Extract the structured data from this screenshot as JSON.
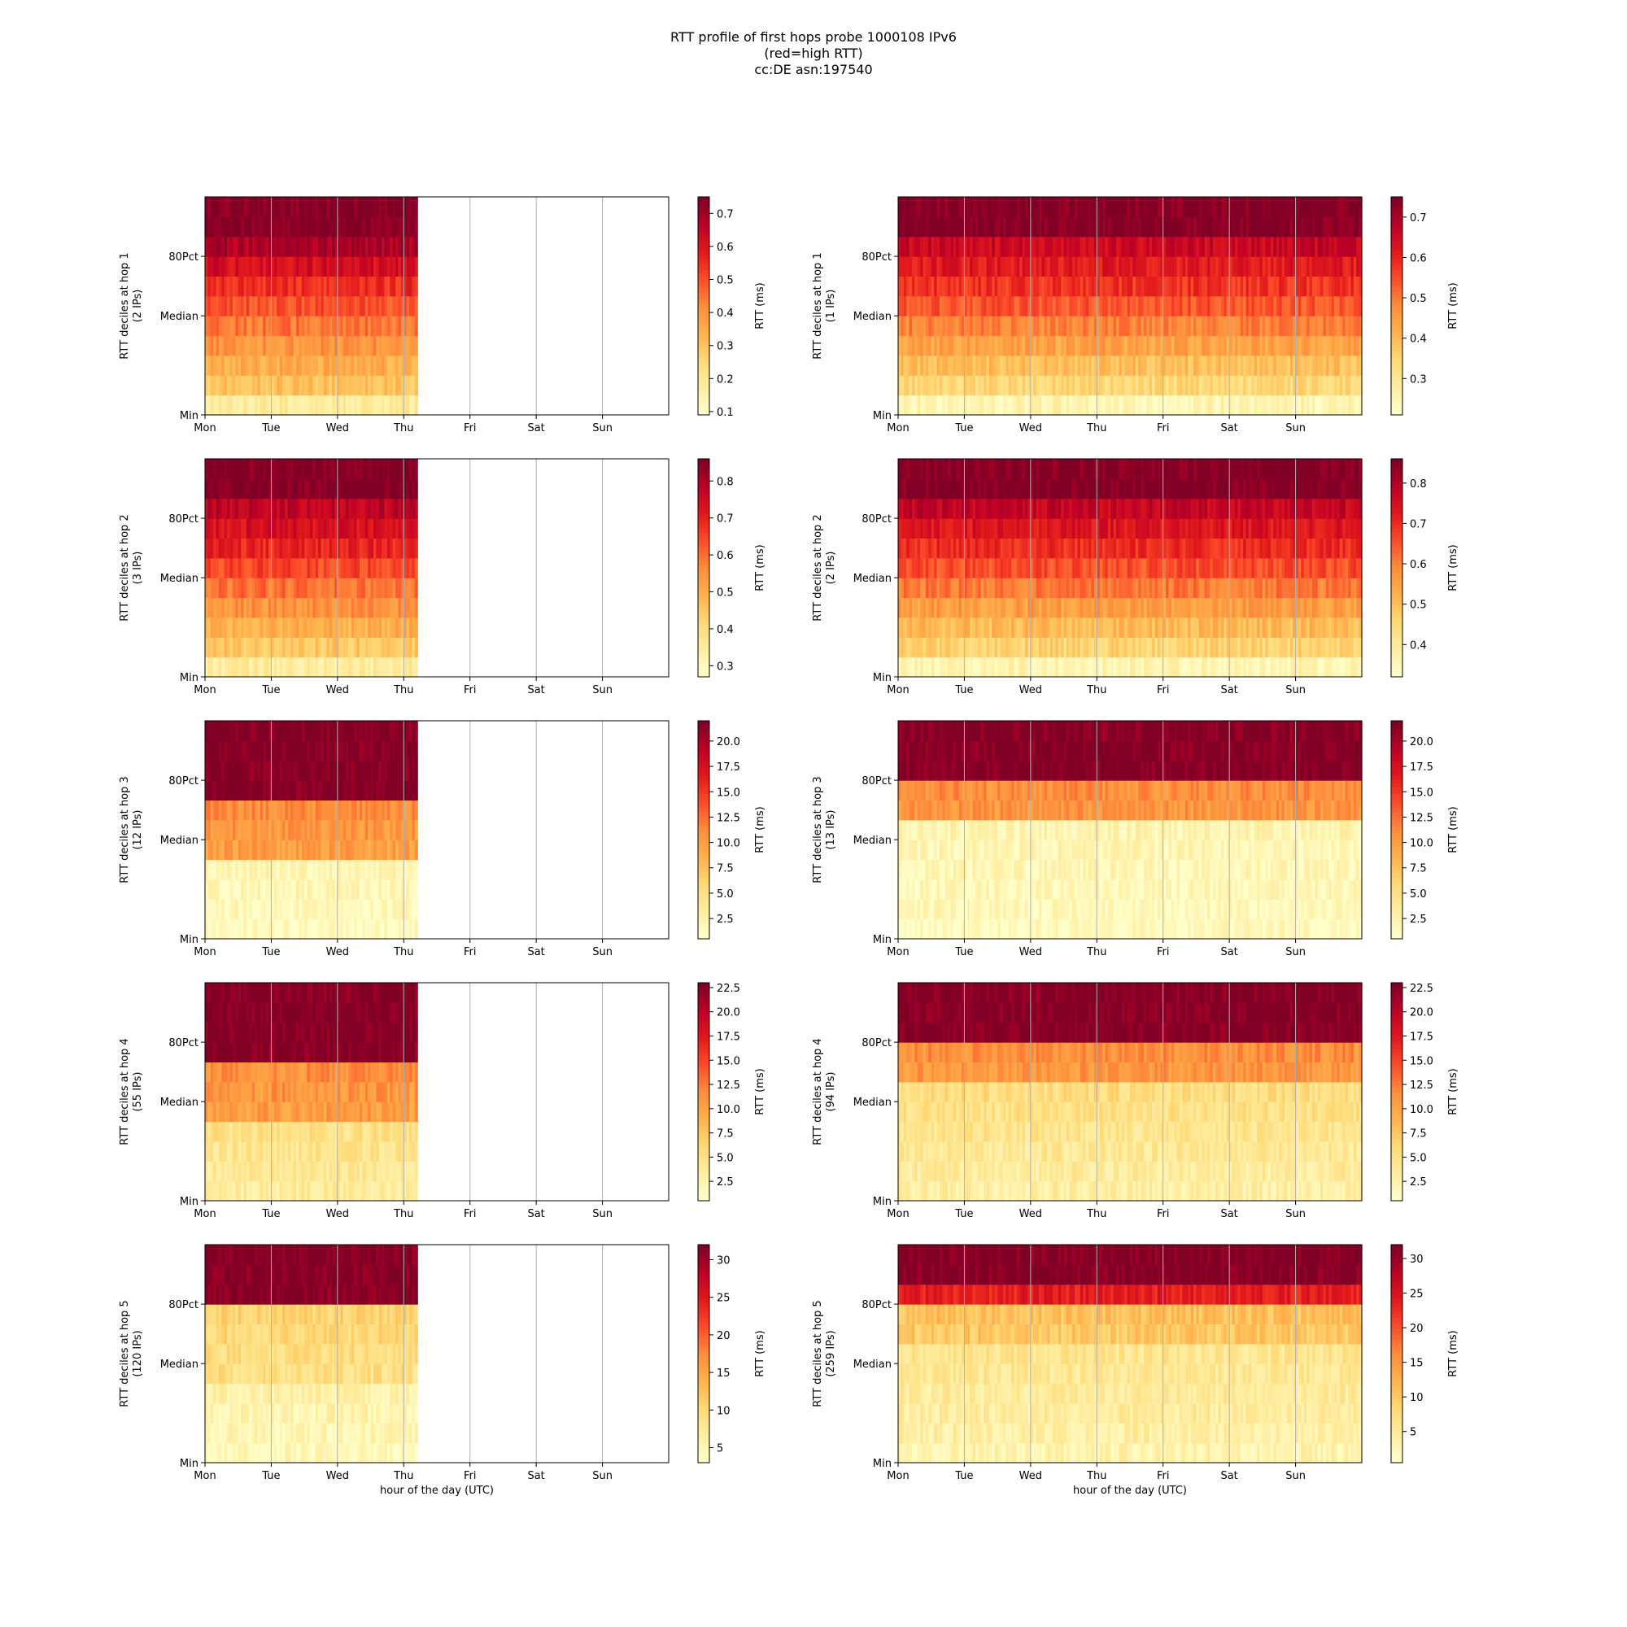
{
  "figure": {
    "title_lines": [
      "RTT profile of first hops probe 1000108 IPv6",
      "(red=high RTT)",
      "cc:DE asn:197540"
    ]
  },
  "chart_data": [
    {
      "type": "heatmap",
      "column": "left",
      "hop": 1,
      "ylabel": [
        "RTT deciles at hop 1",
        "(2 IPs)"
      ],
      "colorbar_label": "RTT (ms)",
      "colorbar_ticks": [
        0.1,
        0.2,
        0.3,
        0.4,
        0.5,
        0.6,
        0.7
      ],
      "colorbar_range": [
        0.09,
        0.75
      ],
      "xticks": [
        "Mon",
        "Tue",
        "Wed",
        "Thu",
        "Fri",
        "Sat",
        "Sun"
      ],
      "yticks": [
        "Min",
        "Median",
        "80Pct"
      ],
      "data_extent_days": 3.2,
      "deciles_ms": [
        0.18,
        0.3,
        0.35,
        0.4,
        0.45,
        0.5,
        0.55,
        0.62,
        0.69,
        0.75,
        0.75
      ],
      "xlabel": ""
    },
    {
      "type": "heatmap",
      "column": "right",
      "hop": 1,
      "ylabel": [
        "RTT deciles at hop 1",
        "(1 IPs)"
      ],
      "colorbar_label": "RTT (ms)",
      "colorbar_ticks": [
        0.3,
        0.4,
        0.5,
        0.6,
        0.7
      ],
      "colorbar_range": [
        0.21,
        0.75
      ],
      "xticks": [
        "Mon",
        "Tue",
        "Wed",
        "Thu",
        "Fri",
        "Sat",
        "Sun"
      ],
      "yticks": [
        "Min",
        "Median",
        "80Pct"
      ],
      "data_extent_days": 7,
      "deciles_ms": [
        0.25,
        0.34,
        0.39,
        0.44,
        0.49,
        0.54,
        0.58,
        0.62,
        0.66,
        0.75,
        0.75
      ],
      "xlabel": ""
    },
    {
      "type": "heatmap",
      "column": "left",
      "hop": 2,
      "ylabel": [
        "RTT deciles at hop 2",
        "(3 IPs)"
      ],
      "colorbar_label": "RTT (ms)",
      "colorbar_ticks": [
        0.3,
        0.4,
        0.5,
        0.6,
        0.7,
        0.8
      ],
      "colorbar_range": [
        0.27,
        0.86
      ],
      "xticks": [
        "Mon",
        "Tue",
        "Wed",
        "Thu",
        "Fri",
        "Sat",
        "Sun"
      ],
      "yticks": [
        "Min",
        "Median",
        "80Pct"
      ],
      "data_extent_days": 3.2,
      "deciles_ms": [
        0.35,
        0.45,
        0.5,
        0.55,
        0.6,
        0.65,
        0.7,
        0.74,
        0.78,
        0.86,
        0.86
      ],
      "xlabel": ""
    },
    {
      "type": "heatmap",
      "column": "right",
      "hop": 2,
      "ylabel": [
        "RTT deciles at hop 2",
        "(2 IPs)"
      ],
      "colorbar_label": "RTT (ms)",
      "colorbar_ticks": [
        0.4,
        0.5,
        0.6,
        0.7,
        0.8
      ],
      "colorbar_range": [
        0.32,
        0.86
      ],
      "xticks": [
        "Mon",
        "Tue",
        "Wed",
        "Thu",
        "Fri",
        "Sat",
        "Sun"
      ],
      "yticks": [
        "Min",
        "Median",
        "80Pct"
      ],
      "data_extent_days": 7,
      "deciles_ms": [
        0.36,
        0.46,
        0.51,
        0.56,
        0.61,
        0.66,
        0.7,
        0.74,
        0.78,
        0.86,
        0.86
      ],
      "xlabel": ""
    },
    {
      "type": "heatmap",
      "column": "left",
      "hop": 3,
      "ylabel": [
        "RTT deciles at hop 3",
        "(12 IPs)"
      ],
      "colorbar_label": "RTT (ms)",
      "colorbar_ticks": [
        2.5,
        5.0,
        7.5,
        10.0,
        12.5,
        15.0,
        17.5,
        20.0
      ],
      "colorbar_range": [
        0.5,
        22
      ],
      "xticks": [
        "Mon",
        "Tue",
        "Wed",
        "Thu",
        "Fri",
        "Sat",
        "Sun"
      ],
      "yticks": [
        "Min",
        "Median",
        "80Pct"
      ],
      "data_extent_days": 3.2,
      "deciles_ms": [
        1.2,
        1.5,
        1.8,
        2.0,
        10.0,
        10.5,
        11.0,
        22,
        22,
        22,
        22
      ],
      "xlabel": ""
    },
    {
      "type": "heatmap",
      "column": "right",
      "hop": 3,
      "ylabel": [
        "RTT deciles at hop 3",
        "(13 IPs)"
      ],
      "colorbar_label": "RTT (ms)",
      "colorbar_ticks": [
        2.5,
        5.0,
        7.5,
        10.0,
        12.5,
        15.0,
        17.5,
        20.0
      ],
      "colorbar_range": [
        0.5,
        22
      ],
      "xticks": [
        "Mon",
        "Tue",
        "Wed",
        "Thu",
        "Fri",
        "Sat",
        "Sun"
      ],
      "yticks": [
        "Min",
        "Median",
        "80Pct"
      ],
      "data_extent_days": 7,
      "deciles_ms": [
        1.2,
        1.4,
        1.6,
        1.8,
        2.0,
        2.2,
        10.5,
        11.0,
        22,
        22,
        22
      ],
      "xlabel": ""
    },
    {
      "type": "heatmap",
      "column": "left",
      "hop": 4,
      "ylabel": [
        "RTT deciles at hop 4",
        "(55 IPs)"
      ],
      "colorbar_label": "RTT (ms)",
      "colorbar_ticks": [
        2.5,
        5.0,
        7.5,
        10.0,
        12.5,
        15.0,
        17.5,
        20.0,
        22.5
      ],
      "colorbar_range": [
        0.5,
        23
      ],
      "xticks": [
        "Mon",
        "Tue",
        "Wed",
        "Thu",
        "Fri",
        "Sat",
        "Sun"
      ],
      "yticks": [
        "Min",
        "Median",
        "80Pct"
      ],
      "data_extent_days": 3.2,
      "deciles_ms": [
        3.5,
        4.0,
        4.5,
        5.0,
        10.5,
        11.0,
        11.5,
        23,
        23,
        23,
        23
      ],
      "xlabel": ""
    },
    {
      "type": "heatmap",
      "column": "right",
      "hop": 4,
      "ylabel": [
        "RTT deciles at hop 4",
        "(94 IPs)"
      ],
      "colorbar_label": "RTT (ms)",
      "colorbar_ticks": [
        2.5,
        5.0,
        7.5,
        10.0,
        12.5,
        15.0,
        17.5,
        20.0,
        22.5
      ],
      "colorbar_range": [
        0.5,
        23
      ],
      "xticks": [
        "Mon",
        "Tue",
        "Wed",
        "Thu",
        "Fri",
        "Sat",
        "Sun"
      ],
      "yticks": [
        "Min",
        "Median",
        "80Pct"
      ],
      "data_extent_days": 7,
      "deciles_ms": [
        3.0,
        3.5,
        4.0,
        4.5,
        5.0,
        5.5,
        11.0,
        11.5,
        23,
        23,
        23
      ],
      "xlabel": ""
    },
    {
      "type": "heatmap",
      "column": "left",
      "hop": 5,
      "ylabel": [
        "RTT deciles at hop 5",
        "(120 IPs)"
      ],
      "colorbar_label": "RTT (ms)",
      "colorbar_ticks": [
        5,
        10,
        15,
        20,
        25,
        30
      ],
      "colorbar_range": [
        3,
        32
      ],
      "xticks": [
        "Mon",
        "Tue",
        "Wed",
        "Thu",
        "Fri",
        "Sat",
        "Sun"
      ],
      "yticks": [
        "Min",
        "Median",
        "80Pct"
      ],
      "data_extent_days": 3.2,
      "deciles_ms": [
        4.5,
        5.0,
        5.5,
        6.0,
        9.0,
        9.5,
        10.0,
        10.5,
        32,
        32,
        32
      ],
      "xlabel": "hour of the day (UTC)"
    },
    {
      "type": "heatmap",
      "column": "right",
      "hop": 5,
      "ylabel": [
        "RTT deciles at hop 5",
        "(259 IPs)"
      ],
      "colorbar_label": "RTT (ms)",
      "colorbar_ticks": [
        5,
        10,
        15,
        20,
        25,
        30
      ],
      "colorbar_range": [
        0.5,
        32
      ],
      "xticks": [
        "Mon",
        "Tue",
        "Wed",
        "Thu",
        "Fri",
        "Sat",
        "Sun"
      ],
      "yticks": [
        "Min",
        "Median",
        "80Pct"
      ],
      "data_extent_days": 7,
      "deciles_ms": [
        3.0,
        4.0,
        4.5,
        5.0,
        5.5,
        6.0,
        10.0,
        11.0,
        24,
        32,
        32
      ],
      "xlabel": "hour of the day (UTC)"
    }
  ]
}
